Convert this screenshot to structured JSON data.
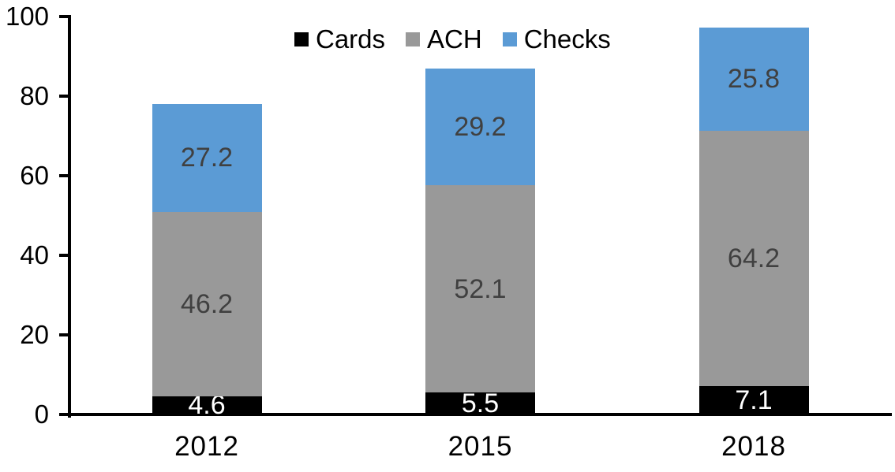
{
  "chart_data": {
    "type": "bar",
    "stacked": true,
    "title": "",
    "xlabel": "",
    "ylabel": "",
    "categories": [
      "2012",
      "2015",
      "2018"
    ],
    "series": [
      {
        "name": "Cards",
        "color": "#000000",
        "label_color": "#ffffff",
        "values": [
          4.6,
          5.5,
          7.1
        ]
      },
      {
        "name": "ACH",
        "color": "#999999",
        "label_color": "#404040",
        "values": [
          46.2,
          52.1,
          64.2
        ]
      },
      {
        "name": "Checks",
        "color": "#5b9bd5",
        "label_color": "#404040",
        "values": [
          27.2,
          29.2,
          25.8
        ]
      }
    ],
    "ylim": [
      0,
      100
    ],
    "yticks": [
      0,
      20,
      40,
      60,
      80,
      100
    ],
    "grid": false,
    "legend_position": "top-center",
    "data_labels": true,
    "axis_color": "#000000",
    "background_color": "#ffffff"
  }
}
